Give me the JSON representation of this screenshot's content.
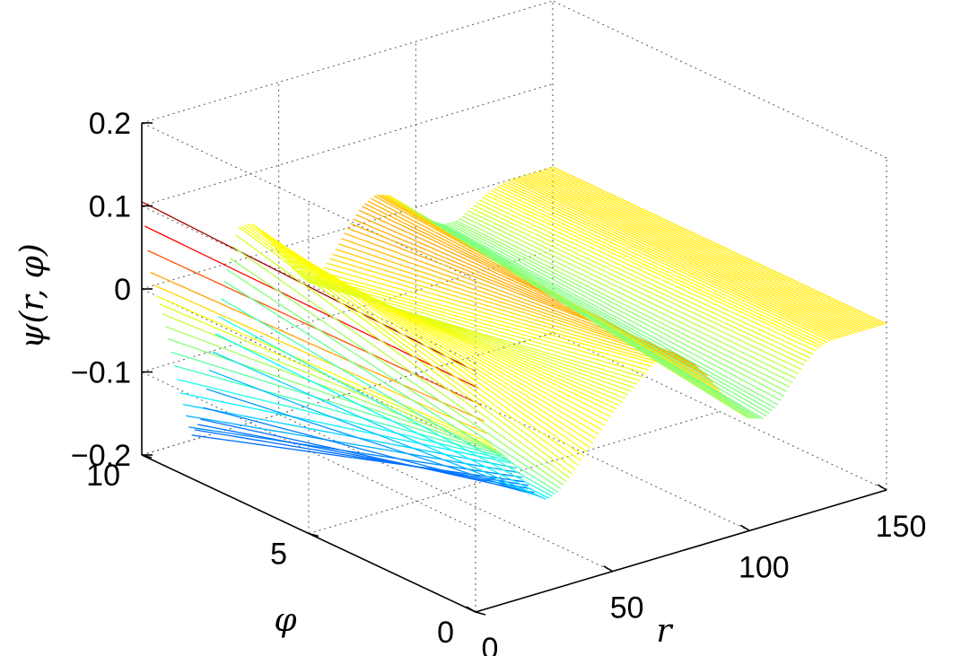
{
  "chart_data": {
    "type": "surface",
    "title": "",
    "xlabel": "r",
    "ylabel": "φ",
    "zlabel": "ψ(r, φ)",
    "xlim": [
      0,
      150
    ],
    "ylim": [
      0,
      10
    ],
    "zlim": [
      -0.2,
      0.2
    ],
    "x_ticks": [
      "0",
      "50",
      "100",
      "150"
    ],
    "y_ticks": [
      "0",
      "5",
      "10"
    ],
    "z_ticks": [
      "−0.2",
      "−0.1",
      "0",
      "0.1",
      "0.2"
    ],
    "grid": true,
    "colormap": "jet",
    "profile": {
      "x": [
        0,
        3,
        5,
        7,
        10,
        14,
        18,
        22,
        26,
        30,
        35,
        40,
        45,
        50,
        55,
        60,
        65,
        70,
        75,
        80,
        85,
        90,
        95,
        100,
        105,
        110,
        115,
        120,
        125,
        130,
        135,
        140,
        145,
        150
      ],
      "z_at_phi_10": [
        0.105,
        0.02,
        -0.01,
        -0.03,
        -0.075,
        -0.14,
        -0.195,
        -0.175,
        -0.095,
        -0.02,
        0.04,
        0.04,
        0.02,
        -0.005,
        -0.03,
        -0.05,
        -0.045,
        -0.025,
        0.0,
        0.02,
        0.03,
        0.025,
        0.01,
        -0.005,
        -0.02,
        -0.03,
        -0.03,
        -0.02,
        -0.01,
        -0.003,
        0.0,
        0.0,
        0.0,
        0.0
      ],
      "z_at_phi_0": [
        0.09,
        0.03,
        0.0,
        -0.01,
        -0.02,
        -0.035,
        -0.06,
        -0.08,
        -0.09,
        -0.085,
        -0.07,
        -0.05,
        -0.03,
        -0.01,
        0.005,
        0.02,
        0.035,
        0.04,
        0.035,
        0.02,
        0.0,
        -0.025,
        -0.05,
        -0.065,
        -0.07,
        -0.06,
        -0.04,
        -0.02,
        -0.005,
        0.0,
        0.0,
        0.0,
        0.0,
        0.0
      ]
    }
  }
}
